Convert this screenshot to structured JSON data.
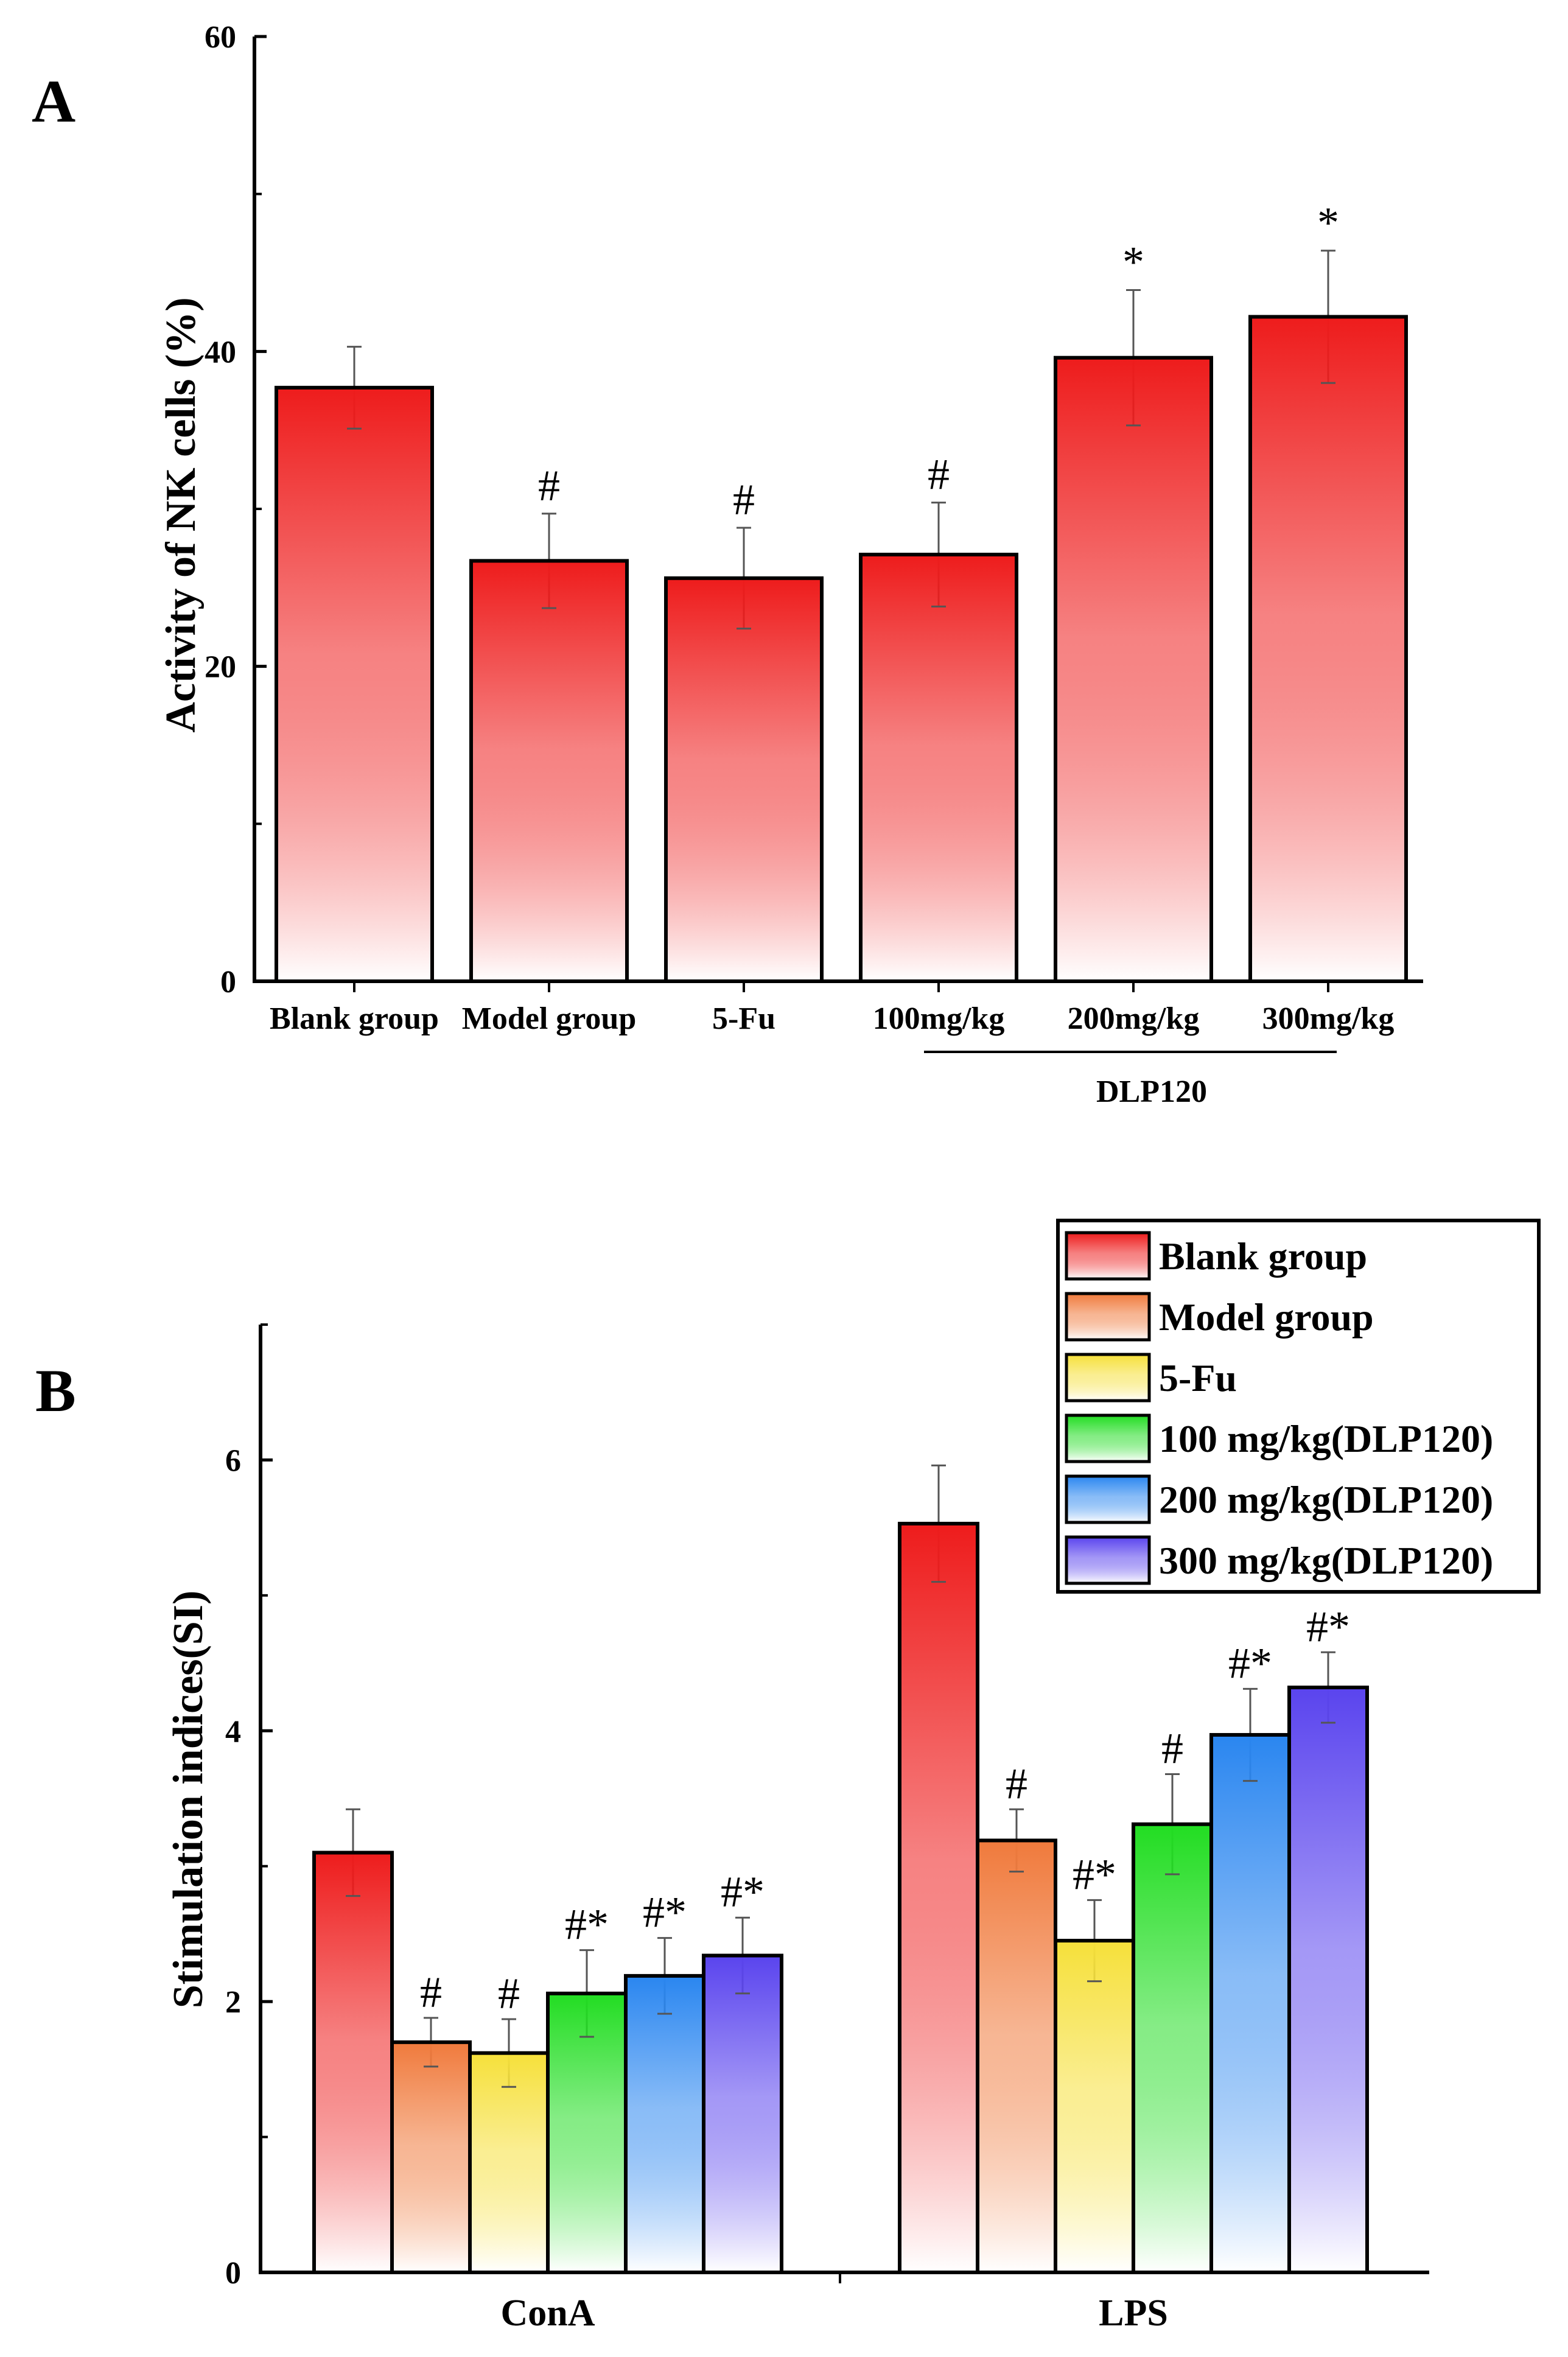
{
  "chart_data": [
    {
      "panel": "A",
      "type": "bar",
      "ylabel": "Activity of NK cells (%)",
      "ylim": [
        0,
        60
      ],
      "yticks": [
        "0",
        "20",
        "40",
        "60"
      ],
      "categories": [
        "Blank group",
        "Model group",
        "5-Fu",
        "100mg/kg",
        "200mg/kg",
        "300mg/kg"
      ],
      "values": [
        37.7,
        26.7,
        25.6,
        27.1,
        39.6,
        42.2
      ],
      "errors": [
        2.6,
        3.0,
        3.2,
        3.3,
        4.3,
        4.2
      ],
      "significance": [
        "",
        "#",
        "#",
        "#",
        "*",
        "*"
      ],
      "group_label": "DLP120",
      "color": "#ee1c1c"
    },
    {
      "panel": "B",
      "type": "bar",
      "ylabel": "Stimulation indices(SI)",
      "ylim": [
        0,
        7
      ],
      "yticks": [
        "0",
        "2",
        "4",
        "6"
      ],
      "categories": [
        "ConA",
        "LPS"
      ],
      "series": [
        {
          "name": "Blank group",
          "color": "#ee1c1c",
          "values": [
            3.1,
            5.53
          ],
          "errors": [
            0.32,
            0.43
          ],
          "significance": [
            "",
            ""
          ]
        },
        {
          "name": "Model group",
          "color": "#f07a3c",
          "values": [
            1.7,
            3.19
          ],
          "errors": [
            0.18,
            0.23
          ],
          "significance": [
            "#",
            "#"
          ]
        },
        {
          "name": "5-Fu",
          "color": "#f6e03a",
          "values": [
            1.62,
            2.45
          ],
          "errors": [
            0.25,
            0.3
          ],
          "significance": [
            "#",
            "#*"
          ]
        },
        {
          "name": "100 mg/kg(DLP120)",
          "color": "#22dd22",
          "values": [
            2.06,
            3.31
          ],
          "errors": [
            0.32,
            0.37
          ],
          "significance": [
            "#*",
            "#"
          ]
        },
        {
          "name": "200 mg/kg(DLP120)",
          "color": "#2a86f0",
          "values": [
            2.19,
            3.97
          ],
          "errors": [
            0.28,
            0.34
          ],
          "significance": [
            "#*",
            "#*"
          ]
        },
        {
          "name": "300 mg/kg(DLP120)",
          "color": "#5a44ee",
          "values": [
            2.34,
            4.32
          ],
          "errors": [
            0.28,
            0.26
          ],
          "significance": [
            "#*",
            "#*"
          ]
        }
      ],
      "legend_position": "top-right"
    }
  ]
}
